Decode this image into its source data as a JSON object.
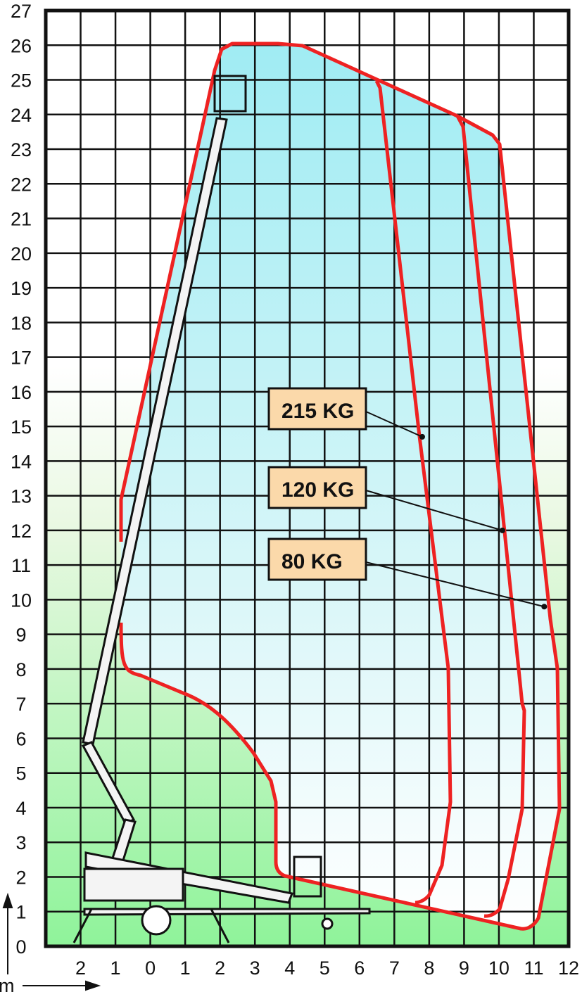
{
  "diagram": {
    "type": "working-range",
    "y_axis": {
      "unit": "m",
      "ticks": [
        "0",
        "1",
        "2",
        "3",
        "4",
        "5",
        "6",
        "7",
        "8",
        "9",
        "10",
        "11",
        "12",
        "13",
        "14",
        "15",
        "16",
        "17",
        "18",
        "19",
        "20",
        "21",
        "22",
        "23",
        "24",
        "25",
        "26",
        "27"
      ]
    },
    "x_axis": {
      "unit": "m",
      "ticks": [
        "2",
        "1",
        "0",
        "1",
        "2",
        "3",
        "4",
        "5",
        "6",
        "7",
        "8",
        "9",
        "10",
        "11",
        "12"
      ]
    },
    "load_labels": [
      {
        "text": "215 KG",
        "point_m": [
          7.8,
          14.7
        ]
      },
      {
        "text": "120 KG",
        "point_m": [
          10.1,
          12.0
        ]
      },
      {
        "text": "80 KG",
        "point_m": [
          11.3,
          9.8
        ]
      }
    ],
    "colors": {
      "envelope": "#ee2222",
      "label_box": "#fbd9aa",
      "top_fill": "#a6eef4",
      "ground_fill": "#8ff39a",
      "grid": "#111111"
    }
  }
}
